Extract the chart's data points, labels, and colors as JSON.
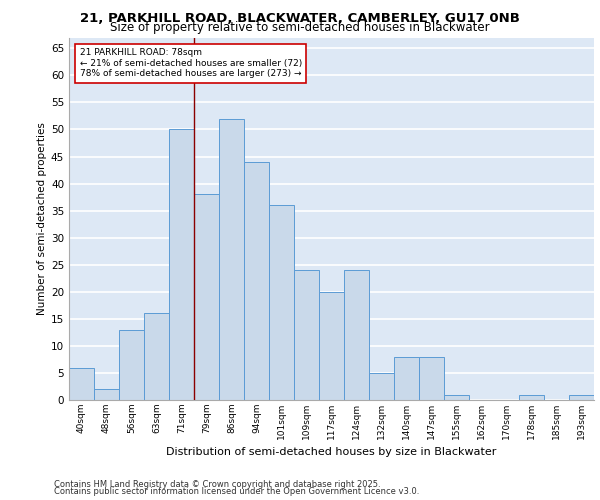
{
  "title_line1": "21, PARKHILL ROAD, BLACKWATER, CAMBERLEY, GU17 0NB",
  "title_line2": "Size of property relative to semi-detached houses in Blackwater",
  "xlabel": "Distribution of semi-detached houses by size in Blackwater",
  "ylabel": "Number of semi-detached properties",
  "categories": [
    "40sqm",
    "48sqm",
    "56sqm",
    "63sqm",
    "71sqm",
    "79sqm",
    "86sqm",
    "94sqm",
    "101sqm",
    "109sqm",
    "117sqm",
    "124sqm",
    "132sqm",
    "140sqm",
    "147sqm",
    "155sqm",
    "162sqm",
    "170sqm",
    "178sqm",
    "185sqm",
    "193sqm"
  ],
  "values": [
    6,
    2,
    13,
    16,
    50,
    38,
    52,
    44,
    36,
    24,
    20,
    24,
    5,
    8,
    8,
    1,
    0,
    0,
    1,
    0,
    1
  ],
  "bar_color": "#c9d9ea",
  "bar_edge_color": "#5b9bd5",
  "background_color": "#dde8f5",
  "grid_color": "#ffffff",
  "vline_index": 4,
  "annotation_line1": "21 PARKHILL ROAD: 78sqm",
  "annotation_line2": "← 21% of semi-detached houses are smaller (72)",
  "annotation_line3": "78% of semi-detached houses are larger (273) →",
  "vline_color": "#8b0000",
  "annotation_box_edge_color": "#cc0000",
  "ylim": [
    0,
    67
  ],
  "yticks": [
    0,
    5,
    10,
    15,
    20,
    25,
    30,
    35,
    40,
    45,
    50,
    55,
    60,
    65
  ],
  "footer_line1": "Contains HM Land Registry data © Crown copyright and database right 2025.",
  "footer_line2": "Contains public sector information licensed under the Open Government Licence v3.0."
}
